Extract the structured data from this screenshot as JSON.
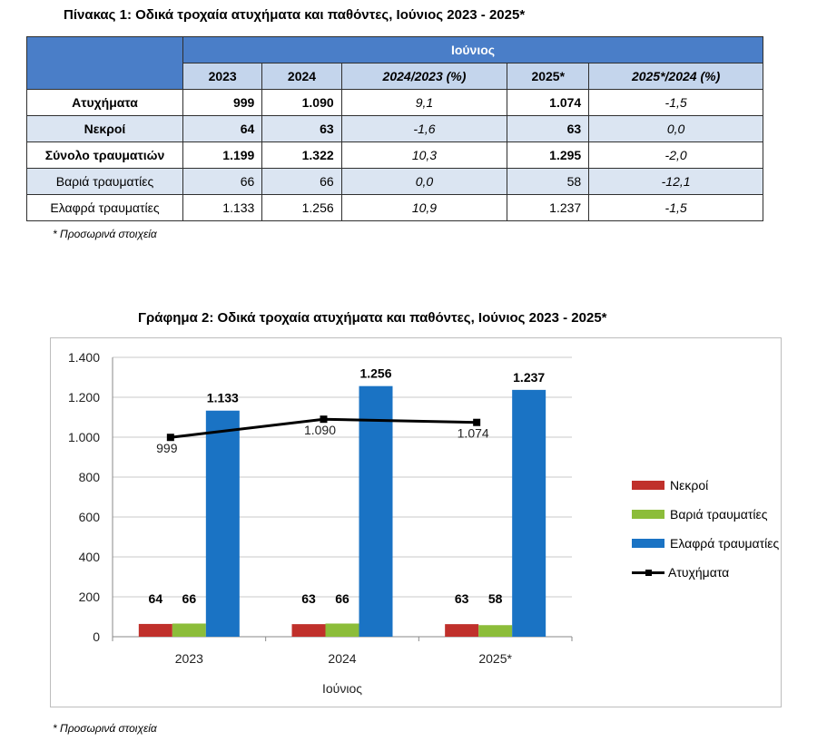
{
  "table": {
    "title": "Πίνακας 1: Οδικά τροχαία ατυχήματα και παθόντες, Ιούνιος 2023 - 2025*",
    "group_header": "Ιούνιος",
    "columns": [
      "2023",
      "2024",
      "2024/2023 (%)",
      "2025*",
      "2025*/2024 (%)"
    ],
    "rows": [
      {
        "label": "Ατυχήματα",
        "values": [
          "999",
          "1.090",
          "9,1",
          "1.074",
          "-1,5"
        ]
      },
      {
        "label": "Νεκροί",
        "values": [
          "64",
          "63",
          "-1,6",
          "63",
          "0,0"
        ]
      },
      {
        "label": "Σύνολο τραυματιών",
        "values": [
          "1.199",
          "1.322",
          "10,3",
          "1.295",
          "-2,0"
        ]
      },
      {
        "label": "Βαριά τραυματίες",
        "values": [
          "66",
          "66",
          "0,0",
          "58",
          "-12,1"
        ]
      },
      {
        "label": "Ελαφρά τραυματίες",
        "values": [
          "1.133",
          "1.256",
          "10,9",
          "1.237",
          "-1,5"
        ]
      }
    ],
    "note": "* Προσωρινά στοιχεία"
  },
  "chart": {
    "title": "Γράφημα 2: Οδικά τροχαία ατυχήματα και παθόντες, Ιούνιος 2023 - 2025*",
    "note": "* Προσωρινά στοιχεία"
  },
  "chart_data": {
    "type": "bar",
    "categories": [
      "2023",
      "2024",
      "2025*"
    ],
    "xlabel": "Ιούνιος",
    "ylabel": "",
    "ylim": [
      0,
      1400
    ],
    "yticks": [
      0,
      200,
      400,
      600,
      800,
      1000,
      1200,
      1400
    ],
    "ytick_labels": [
      "0",
      "200",
      "400",
      "600",
      "800",
      "1.000",
      "1.200",
      "1.400"
    ],
    "grid": true,
    "legend": "right",
    "series": [
      {
        "name": "Νεκροί",
        "type": "bar",
        "color": "#c0302b",
        "values": [
          64,
          63,
          63
        ],
        "labels": [
          "64",
          "63",
          "63"
        ]
      },
      {
        "name": "Βαριά τραυματίες",
        "type": "bar",
        "color": "#8cbd3a",
        "values": [
          66,
          66,
          58
        ],
        "labels": [
          "66",
          "66",
          "58"
        ]
      },
      {
        "name": "Ελαφρά τραυματίες",
        "type": "bar",
        "color": "#1a73c4",
        "values": [
          1133,
          1256,
          1237
        ],
        "labels": [
          "1.133",
          "1.256",
          "1.237"
        ]
      },
      {
        "name": "Ατυχήματα",
        "type": "line",
        "color": "#000000",
        "values": [
          999,
          1090,
          1074
        ],
        "labels": [
          "999",
          "1.090",
          "1.074"
        ]
      }
    ]
  }
}
